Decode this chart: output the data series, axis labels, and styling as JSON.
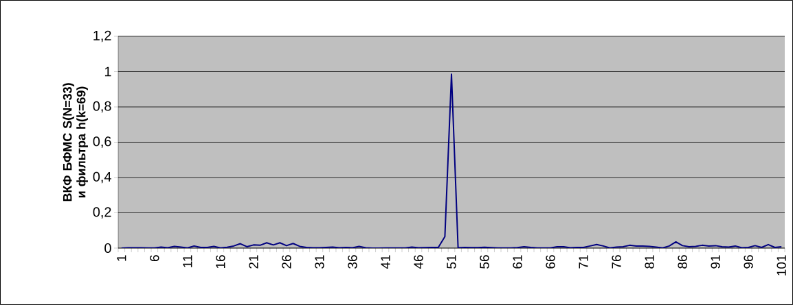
{
  "chart_data": {
    "type": "line",
    "ylabel": "ВКФ БФМС S(N=33) и фильтра h(k=69)",
    "categories": [
      "1",
      null,
      null,
      null,
      null,
      "6",
      null,
      null,
      null,
      null,
      "11",
      null,
      null,
      null,
      null,
      "16",
      null,
      null,
      null,
      null,
      "21",
      null,
      null,
      null,
      null,
      "26",
      null,
      null,
      null,
      null,
      "31",
      null,
      null,
      null,
      null,
      "36",
      null,
      null,
      null,
      null,
      "41",
      null,
      null,
      null,
      null,
      "46",
      null,
      null,
      null,
      null,
      "51",
      null,
      null,
      null,
      null,
      "56",
      null,
      null,
      null,
      null,
      "61",
      null,
      null,
      null,
      null,
      "66",
      null,
      null,
      null,
      null,
      "71",
      null,
      null,
      null,
      null,
      "76",
      null,
      null,
      null,
      null,
      "81",
      null,
      null,
      null,
      null,
      "86",
      null,
      null,
      null,
      null,
      "91",
      null,
      null,
      null,
      null,
      "96",
      null,
      null,
      null,
      null,
      "101"
    ],
    "series": [
      {
        "color": "#000080",
        "values": [
          0,
          0.002,
          0.002,
          0.002,
          0.001,
          0.001,
          0.006,
          0.002,
          0.01,
          0.006,
          0.001,
          0.012,
          0.004,
          0.004,
          0.01,
          0.001,
          0.005,
          0.012,
          0.025,
          0.008,
          0.018,
          0.016,
          0.03,
          0.018,
          0.03,
          0.014,
          0.026,
          0.01,
          0.004,
          0.002,
          0.002,
          0.004,
          0.006,
          0.002,
          0.004,
          0.002,
          0.01,
          0.002,
          0,
          0,
          0.001,
          0.001,
          0.001,
          0.001,
          0.006,
          0.002,
          0.003,
          0.004,
          0.004,
          0.065,
          0.985,
          0.002,
          0.004,
          0.003,
          0.003,
          0.005,
          0.003,
          0.001,
          0.001,
          0.001,
          0.003,
          0.008,
          0.004,
          0.001,
          0.001,
          0.001,
          0.008,
          0.008,
          0.002,
          0.004,
          0.004,
          0.012,
          0.02,
          0.012,
          0.001,
          0.006,
          0.008,
          0.016,
          0.012,
          0.012,
          0.01,
          0.006,
          0.001,
          0.012,
          0.035,
          0.014,
          0.008,
          0.01,
          0.016,
          0.012,
          0.014,
          0.008,
          0.006,
          0.012,
          0.002,
          0.004,
          0.014,
          0.004,
          0.02,
          0.004,
          0.008
        ]
      }
    ],
    "ylim": [
      0,
      1.2
    ],
    "yticks": [
      0,
      {
        "value": 0.2,
        "label": "0,2"
      },
      {
        "value": 0.4,
        "label": "0,4"
      },
      {
        "value": 0.6,
        "label": "0,6"
      },
      {
        "value": 0.8,
        "label": "0,8"
      },
      1,
      {
        "value": 1.2,
        "label": "1,2"
      }
    ],
    "grid": "y",
    "marker": "none",
    "line_style": "solid"
  }
}
